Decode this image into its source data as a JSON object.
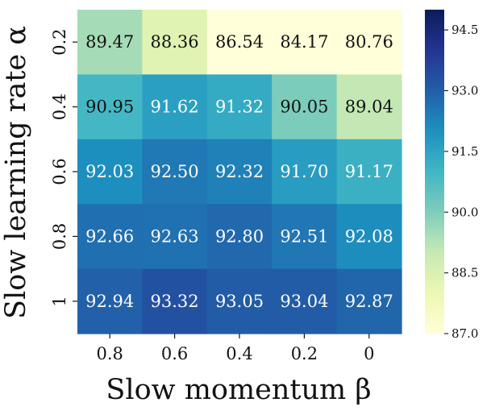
{
  "chart_data": {
    "type": "heatmap",
    "title": "",
    "xlabel": "Slow momentum β",
    "ylabel": "Slow learning rate α",
    "x_categories": [
      "0.8",
      "0.6",
      "0.4",
      "0.2",
      "0"
    ],
    "y_categories": [
      "0.2",
      "0.4",
      "0.6",
      "0.8",
      "1"
    ],
    "values": [
      [
        89.47,
        88.36,
        86.54,
        84.17,
        80.76
      ],
      [
        90.95,
        91.62,
        91.32,
        90.05,
        89.04
      ],
      [
        92.03,
        92.5,
        92.32,
        91.7,
        91.17
      ],
      [
        92.66,
        92.63,
        92.8,
        92.51,
        92.08
      ],
      [
        92.94,
        93.32,
        93.05,
        93.04,
        92.87
      ]
    ],
    "value_labels": [
      [
        "89.47",
        "88.36",
        "86.54",
        "84.17",
        "80.76"
      ],
      [
        "90.95",
        "91.62",
        "91.32",
        "90.05",
        "89.04"
      ],
      [
        "92.03",
        "92.50",
        "92.32",
        "91.70",
        "91.17"
      ],
      [
        "92.66",
        "92.63",
        "92.80",
        "92.51",
        "92.08"
      ],
      [
        "92.94",
        "93.32",
        "93.05",
        "93.04",
        "92.87"
      ]
    ],
    "colormap": "YlGnBu",
    "color_range": [
      87.0,
      95.0
    ],
    "colorbar_ticks": [
      "87.0",
      "88.5",
      "90.0",
      "91.5",
      "93.0",
      "94.5"
    ],
    "grid": false,
    "legend": "colorbar-right"
  }
}
